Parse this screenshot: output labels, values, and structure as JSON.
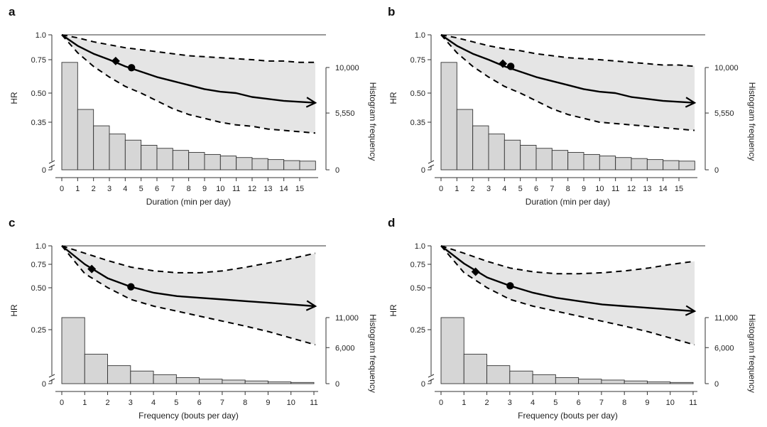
{
  "chart_data": [
    {
      "panel": "a",
      "type": "line",
      "xlabel": "Duration (min per day)",
      "ylabel": "HR",
      "y2label": "Histogram frequency",
      "x_ticks": [
        0,
        1,
        2,
        3,
        4,
        5,
        6,
        7,
        8,
        9,
        10,
        11,
        12,
        13,
        14,
        15
      ],
      "xlim": [
        0,
        16
      ],
      "y_ticks": [
        "1.0",
        "0.75",
        "0.50",
        "0.35",
        "0"
      ],
      "y_tick_values": [
        1.0,
        0.75,
        0.5,
        0.35,
        0
      ],
      "y2_ticks": [
        "10,000",
        "5,550",
        "0"
      ],
      "y2_tick_values": [
        10000,
        5550,
        0
      ],
      "reference_line": 1.0,
      "series": [
        {
          "role": "estimate",
          "style": "solid",
          "arrow": true,
          "x": [
            0,
            1,
            2,
            3,
            4,
            5,
            6,
            7,
            8,
            9,
            10,
            11,
            12,
            13,
            14,
            15,
            16
          ],
          "y": [
            1.0,
            0.89,
            0.81,
            0.75,
            0.7,
            0.66,
            0.62,
            0.59,
            0.56,
            0.53,
            0.51,
            0.5,
            0.48,
            0.47,
            0.46,
            0.455,
            0.45
          ]
        },
        {
          "role": "upper_ci",
          "style": "dashed",
          "x": [
            0,
            1,
            2,
            3,
            4,
            5,
            6,
            7,
            8,
            9,
            10,
            11,
            12,
            13,
            14,
            15,
            16
          ],
          "y": [
            1.0,
            0.97,
            0.93,
            0.9,
            0.87,
            0.85,
            0.83,
            0.81,
            0.79,
            0.78,
            0.77,
            0.76,
            0.75,
            0.74,
            0.74,
            0.73,
            0.73
          ]
        },
        {
          "role": "lower_ci",
          "style": "dashed",
          "x": [
            0,
            1,
            2,
            3,
            4,
            5,
            6,
            7,
            8,
            9,
            10,
            11,
            12,
            13,
            14,
            15,
            16
          ],
          "y": [
            1.0,
            0.82,
            0.7,
            0.62,
            0.55,
            0.5,
            0.46,
            0.42,
            0.39,
            0.37,
            0.35,
            0.33,
            0.32,
            0.3,
            0.29,
            0.28,
            0.27
          ]
        }
      ],
      "markers": [
        {
          "shape": "diamond",
          "x": 3.4,
          "y": 0.74
        },
        {
          "shape": "circle",
          "x": 4.4,
          "y": 0.69
        }
      ],
      "histogram": {
        "bin_width": 1,
        "values": [
          10500,
          5900,
          4300,
          3500,
          2900,
          2400,
          2100,
          1900,
          1700,
          1500,
          1350,
          1200,
          1100,
          1000,
          900,
          850
        ]
      }
    },
    {
      "panel": "b",
      "type": "line",
      "xlabel": "Duration (min per day)",
      "ylabel": "HR",
      "y2label": "Histogram frequency",
      "x_ticks": [
        0,
        1,
        2,
        3,
        4,
        5,
        6,
        7,
        8,
        9,
        10,
        11,
        12,
        13,
        14,
        15
      ],
      "xlim": [
        0,
        16
      ],
      "y_ticks": [
        "1.0",
        "0.75",
        "0.50",
        "0.35",
        "0"
      ],
      "y_tick_values": [
        1.0,
        0.75,
        0.5,
        0.35,
        0
      ],
      "y2_ticks": [
        "10,000",
        "5,550",
        "0"
      ],
      "y2_tick_values": [
        10000,
        5550,
        0
      ],
      "reference_line": 1.0,
      "series": [
        {
          "role": "estimate",
          "style": "solid",
          "arrow": true,
          "x": [
            0,
            1,
            2,
            3,
            4,
            5,
            6,
            7,
            8,
            9,
            10,
            11,
            12,
            13,
            14,
            15,
            16
          ],
          "y": [
            1.0,
            0.89,
            0.81,
            0.75,
            0.7,
            0.66,
            0.62,
            0.59,
            0.56,
            0.53,
            0.51,
            0.5,
            0.48,
            0.47,
            0.46,
            0.455,
            0.45
          ]
        },
        {
          "role": "upper_ci",
          "style": "dashed",
          "x": [
            0,
            1,
            2,
            3,
            4,
            5,
            6,
            7,
            8,
            9,
            10,
            11,
            12,
            13,
            14,
            15,
            16
          ],
          "y": [
            1.0,
            0.97,
            0.93,
            0.89,
            0.86,
            0.84,
            0.81,
            0.79,
            0.77,
            0.76,
            0.75,
            0.74,
            0.73,
            0.72,
            0.71,
            0.71,
            0.7
          ]
        },
        {
          "role": "lower_ci",
          "style": "dashed",
          "x": [
            0,
            1,
            2,
            3,
            4,
            5,
            6,
            7,
            8,
            9,
            10,
            11,
            12,
            13,
            14,
            15,
            16
          ],
          "y": [
            1.0,
            0.82,
            0.7,
            0.62,
            0.55,
            0.5,
            0.46,
            0.42,
            0.39,
            0.37,
            0.35,
            0.34,
            0.33,
            0.32,
            0.31,
            0.3,
            0.29
          ]
        }
      ],
      "markers": [
        {
          "shape": "diamond",
          "x": 3.9,
          "y": 0.72
        },
        {
          "shape": "circle",
          "x": 4.4,
          "y": 0.7
        }
      ],
      "histogram": {
        "bin_width": 1,
        "values": [
          10500,
          5900,
          4300,
          3500,
          2900,
          2400,
          2100,
          1900,
          1700,
          1500,
          1350,
          1200,
          1100,
          1000,
          900,
          850
        ]
      }
    },
    {
      "panel": "c",
      "type": "line",
      "xlabel": "Frequency (bouts per day)",
      "ylabel": "HR",
      "y2label": "Histogram frequency",
      "x_ticks": [
        0,
        1,
        2,
        3,
        4,
        5,
        6,
        7,
        8,
        9,
        10,
        11
      ],
      "xlim": [
        0,
        11
      ],
      "y_ticks": [
        "1.0",
        "0.75",
        "0.50",
        "0.25",
        "0"
      ],
      "y_tick_values": [
        1.0,
        0.75,
        0.5,
        0.25,
        0
      ],
      "y2_ticks": [
        "11,000",
        "6,000",
        "0"
      ],
      "y2_tick_values": [
        11000,
        6000,
        0
      ],
      "reference_line": 1.0,
      "series": [
        {
          "role": "estimate",
          "style": "solid",
          "arrow": true,
          "x": [
            0,
            1,
            2,
            3,
            4,
            5,
            6,
            7,
            8,
            9,
            10,
            11
          ],
          "y": [
            1.0,
            0.75,
            0.6,
            0.51,
            0.47,
            0.45,
            0.44,
            0.43,
            0.42,
            0.41,
            0.4,
            0.39
          ]
        },
        {
          "role": "upper_ci",
          "style": "dashed",
          "x": [
            0,
            1,
            2,
            3,
            4,
            5,
            6,
            7,
            8,
            9,
            10,
            11
          ],
          "y": [
            1.0,
            0.9,
            0.8,
            0.72,
            0.68,
            0.66,
            0.66,
            0.68,
            0.72,
            0.77,
            0.83,
            0.9
          ]
        },
        {
          "role": "lower_ci",
          "style": "dashed",
          "x": [
            0,
            1,
            2,
            3,
            4,
            5,
            6,
            7,
            8,
            9,
            10,
            11
          ],
          "y": [
            1.0,
            0.65,
            0.5,
            0.43,
            0.39,
            0.36,
            0.33,
            0.3,
            0.27,
            0.24,
            0.21,
            0.18
          ]
        }
      ],
      "markers": [
        {
          "shape": "diamond",
          "x": 1.3,
          "y": 0.7
        },
        {
          "shape": "circle",
          "x": 3.0,
          "y": 0.51
        }
      ],
      "histogram": {
        "bin_width": 1,
        "values": [
          11000,
          4900,
          3000,
          2100,
          1500,
          1000,
          750,
          600,
          450,
          300,
          200
        ]
      }
    },
    {
      "panel": "d",
      "type": "line",
      "xlabel": "Frequency (bouts per day)",
      "ylabel": "HR",
      "y2label": "Histogram frequency",
      "x_ticks": [
        0,
        1,
        2,
        3,
        4,
        5,
        6,
        7,
        8,
        9,
        10,
        11
      ],
      "xlim": [
        0,
        11
      ],
      "y_ticks": [
        "1.0",
        "0.75",
        "0.50",
        "0.25",
        "0"
      ],
      "y_tick_values": [
        1.0,
        0.75,
        0.5,
        0.25,
        0
      ],
      "y2_ticks": [
        "11,000",
        "6,000",
        "0"
      ],
      "y2_tick_values": [
        11000,
        6000,
        0
      ],
      "reference_line": 1.0,
      "series": [
        {
          "role": "estimate",
          "style": "solid",
          "arrow": true,
          "x": [
            0,
            1,
            2,
            3,
            4,
            5,
            6,
            7,
            8,
            9,
            10,
            11
          ],
          "y": [
            1.0,
            0.76,
            0.61,
            0.52,
            0.47,
            0.44,
            0.42,
            0.4,
            0.39,
            0.38,
            0.37,
            0.36
          ]
        },
        {
          "role": "upper_ci",
          "style": "dashed",
          "x": [
            0,
            1,
            2,
            3,
            4,
            5,
            6,
            7,
            8,
            9,
            10,
            11
          ],
          "y": [
            1.0,
            0.9,
            0.79,
            0.71,
            0.67,
            0.65,
            0.65,
            0.66,
            0.68,
            0.71,
            0.75,
            0.79
          ]
        },
        {
          "role": "lower_ci",
          "style": "dashed",
          "x": [
            0,
            1,
            2,
            3,
            4,
            5,
            6,
            7,
            8,
            9,
            10,
            11
          ],
          "y": [
            1.0,
            0.66,
            0.5,
            0.43,
            0.39,
            0.36,
            0.33,
            0.3,
            0.27,
            0.24,
            0.21,
            0.18
          ]
        }
      ],
      "markers": [
        {
          "shape": "diamond",
          "x": 1.5,
          "y": 0.67
        },
        {
          "shape": "circle",
          "x": 3.0,
          "y": 0.52
        }
      ],
      "histogram": {
        "bin_width": 1,
        "values": [
          11000,
          4900,
          3000,
          2100,
          1500,
          1000,
          750,
          600,
          450,
          300,
          200
        ]
      }
    }
  ],
  "colors": {
    "ci_fill": "#e5e5e5",
    "bar_fill": "#d6d6d6",
    "bar_stroke": "#333333",
    "line": "#000000",
    "axis": "#333333"
  }
}
